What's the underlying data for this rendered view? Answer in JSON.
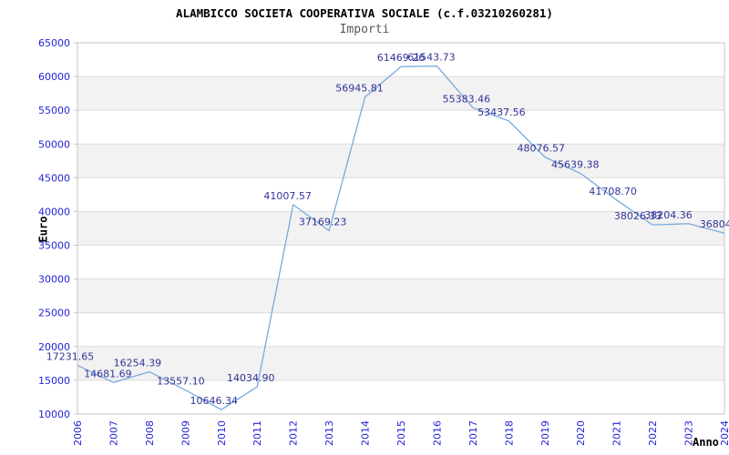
{
  "header": {
    "title": "ALAMBICCO SOCIETA COOPERATIVA SOCIALE (c.f.03210260281)",
    "subtitle": "Importi"
  },
  "axes": {
    "y_title": "Euro",
    "x_title": "Anno"
  },
  "chart_data": {
    "type": "line",
    "title": "ALAMBICCO SOCIETA COOPERATIVA SOCIALE (c.f.03210260281)",
    "subtitle": "Importi",
    "xlabel": "Anno",
    "ylabel": "Euro",
    "categories": [
      "2006",
      "2007",
      "2008",
      "2009",
      "2010",
      "2011",
      "2012",
      "2013",
      "2014",
      "2015",
      "2016",
      "2017",
      "2018",
      "2019",
      "2020",
      "2021",
      "2022",
      "2023",
      "2024"
    ],
    "values": [
      17231.65,
      14681.69,
      16254.39,
      13557.1,
      10646.34,
      14034.9,
      41007.57,
      37169.23,
      56945.81,
      61469.26,
      61543.73,
      55383.46,
      53437.56,
      48076.57,
      45639.38,
      41708.7,
      38026.33,
      38204.36,
      36804.0
    ],
    "point_labels": [
      "17231.65",
      "14681.69",
      "16254.39",
      "13557.10",
      "10646.34",
      "14034.90",
      "41007.57",
      "37169.23",
      "56945.81",
      "61469.26",
      "61543.73",
      "55383.46",
      "53437.56",
      "48076.57",
      "45639.38",
      "41708.70",
      "38026.33",
      "38204.36",
      "36804."
    ],
    "label_dx": [
      -8,
      -6,
      -13,
      -5,
      -8,
      -7,
      -6,
      -7,
      -6,
      0,
      -6,
      -7,
      -8,
      -4,
      -6,
      -4,
      -16,
      -22,
      -8
    ],
    "ylim": [
      10000,
      65000
    ],
    "y_ticks": [
      10000,
      15000,
      20000,
      25000,
      30000,
      35000,
      40000,
      45000,
      50000,
      55000,
      60000,
      65000
    ],
    "grid": "horizontal gridlines every 5000 with alternating gray/white bands",
    "legend": "none",
    "colors": {
      "line": "#7aa9dd",
      "point_label": "#333399",
      "axis_tick_label": "#2424d6",
      "band_fill": "#f2f2f2",
      "gridline": "#dcdcdc",
      "plot_border": "#c4c4c4",
      "title": "#000000",
      "subtitle": "#595959",
      "axis_title": "#000000"
    }
  }
}
